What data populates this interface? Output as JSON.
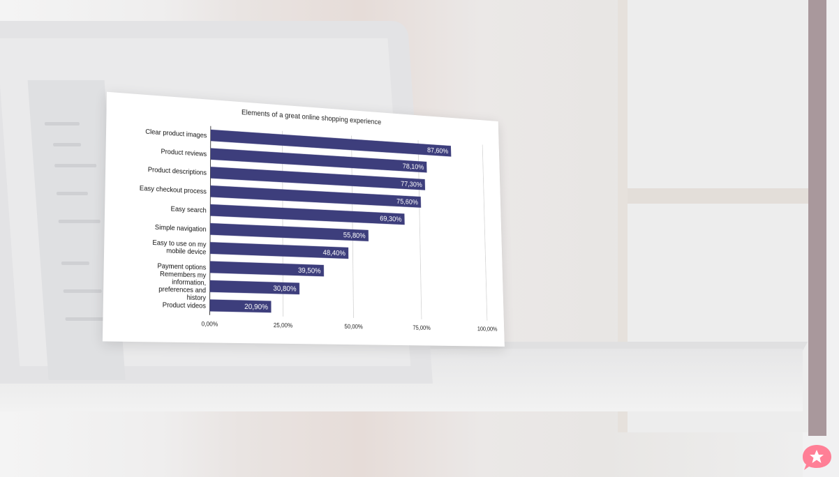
{
  "chart_data": {
    "type": "bar",
    "orientation": "horizontal",
    "title": "Elements of a great online shopping experience",
    "categories": [
      "Clear product images",
      "Product reviews",
      "Product descriptions",
      "Easy checkout process",
      "Easy search",
      "Simple navigation",
      "Easy to use on my mobile device",
      "Payment options",
      "Remembers my information, preferences and history",
      "Product videos"
    ],
    "values": [
      87.6,
      78.1,
      77.3,
      75.6,
      69.3,
      55.8,
      48.4,
      39.5,
      30.8,
      20.9
    ],
    "data_labels": [
      "87,60%",
      "78,10%",
      "77,30%",
      "75,60%",
      "69,30%",
      "55,80%",
      "48,40%",
      "39,50%",
      "30,80%",
      "20,90%"
    ],
    "xlim": [
      0,
      100
    ],
    "x_ticks": [
      "0,00%",
      "25,00%",
      "50,00%",
      "75,00%",
      "100,00%"
    ],
    "grid": true,
    "bar_color": "#3d3e7c"
  },
  "colors": {
    "scrollbar": "#a9989c",
    "fab": "#ff7f96"
  },
  "icons": {
    "fab": "star-chat-bubble-icon"
  }
}
